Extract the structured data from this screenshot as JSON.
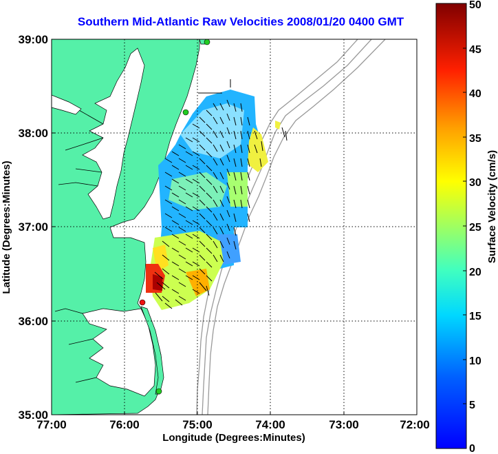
{
  "title": "Southern Mid-Atlantic Raw Velocities 2008/01/20 0400 GMT",
  "xlabel": "Longitude (Degrees:Minutes)",
  "ylabel": "Latitude (Degrees:Minutes)",
  "x_ticks": [
    "77:00",
    "76:00",
    "75:00",
    "74:00",
    "73:00",
    "72:00"
  ],
  "y_ticks": [
    "39:00",
    "38:00",
    "37:00",
    "36:00",
    "35:00"
  ],
  "colorbar": {
    "label": "Surface Velocity (cm/s)",
    "ticks": [
      "50",
      "45",
      "40",
      "35",
      "30",
      "25",
      "20",
      "15",
      "10",
      "5",
      "0"
    ],
    "range": [
      0,
      50
    ],
    "units": "cm/s",
    "colormap": "jet"
  },
  "colors": {
    "land": "#55f0a8",
    "title": "#0000ff",
    "bathymetry": "#999999",
    "station_green": "#22cc22",
    "station_red": "#ee1111"
  }
}
